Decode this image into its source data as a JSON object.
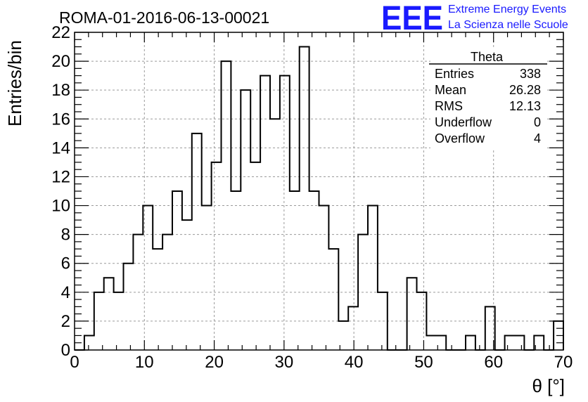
{
  "header": {
    "run_title": "ROMA-01-2016-06-13-00021",
    "logo_text": "EEE",
    "project_line1": "Extreme Energy Events",
    "project_line2": "La Scienza nelle Scuole"
  },
  "stats_box": {
    "title": "Theta",
    "rows": [
      {
        "label": "Entries",
        "value": "338"
      },
      {
        "label": "Mean",
        "value": "26.28"
      },
      {
        "label": "RMS",
        "value": "12.13"
      },
      {
        "label": "Underflow",
        "value": "0"
      },
      {
        "label": "Overflow",
        "value": "4"
      }
    ]
  },
  "colors": {
    "logo": "#1a1aff",
    "grid": "#9a9a9a",
    "line": "#000000"
  },
  "chart_data": {
    "type": "bar",
    "style": "step-histogram",
    "xlabel": "θ [°]",
    "ylabel": "Entries/bin",
    "xlim": [
      0,
      70
    ],
    "ylim": [
      0,
      22
    ],
    "bin_width": 1.4,
    "grid": true,
    "x_ticks": [
      0,
      10,
      20,
      30,
      40,
      50,
      60,
      70
    ],
    "y_ticks": [
      0,
      2,
      4,
      6,
      8,
      10,
      12,
      14,
      16,
      18,
      20,
      22
    ],
    "values": [
      0,
      1,
      4,
      5,
      4,
      6,
      8,
      10,
      7,
      8,
      11,
      9,
      15,
      10,
      13,
      20,
      11,
      18,
      13,
      19,
      16,
      19,
      11,
      21,
      11,
      10,
      7,
      2,
      3,
      8,
      10,
      4,
      0,
      0,
      5,
      4,
      1,
      1,
      0,
      0,
      1,
      0,
      3,
      0,
      1,
      1,
      0,
      1,
      0,
      2
    ]
  }
}
